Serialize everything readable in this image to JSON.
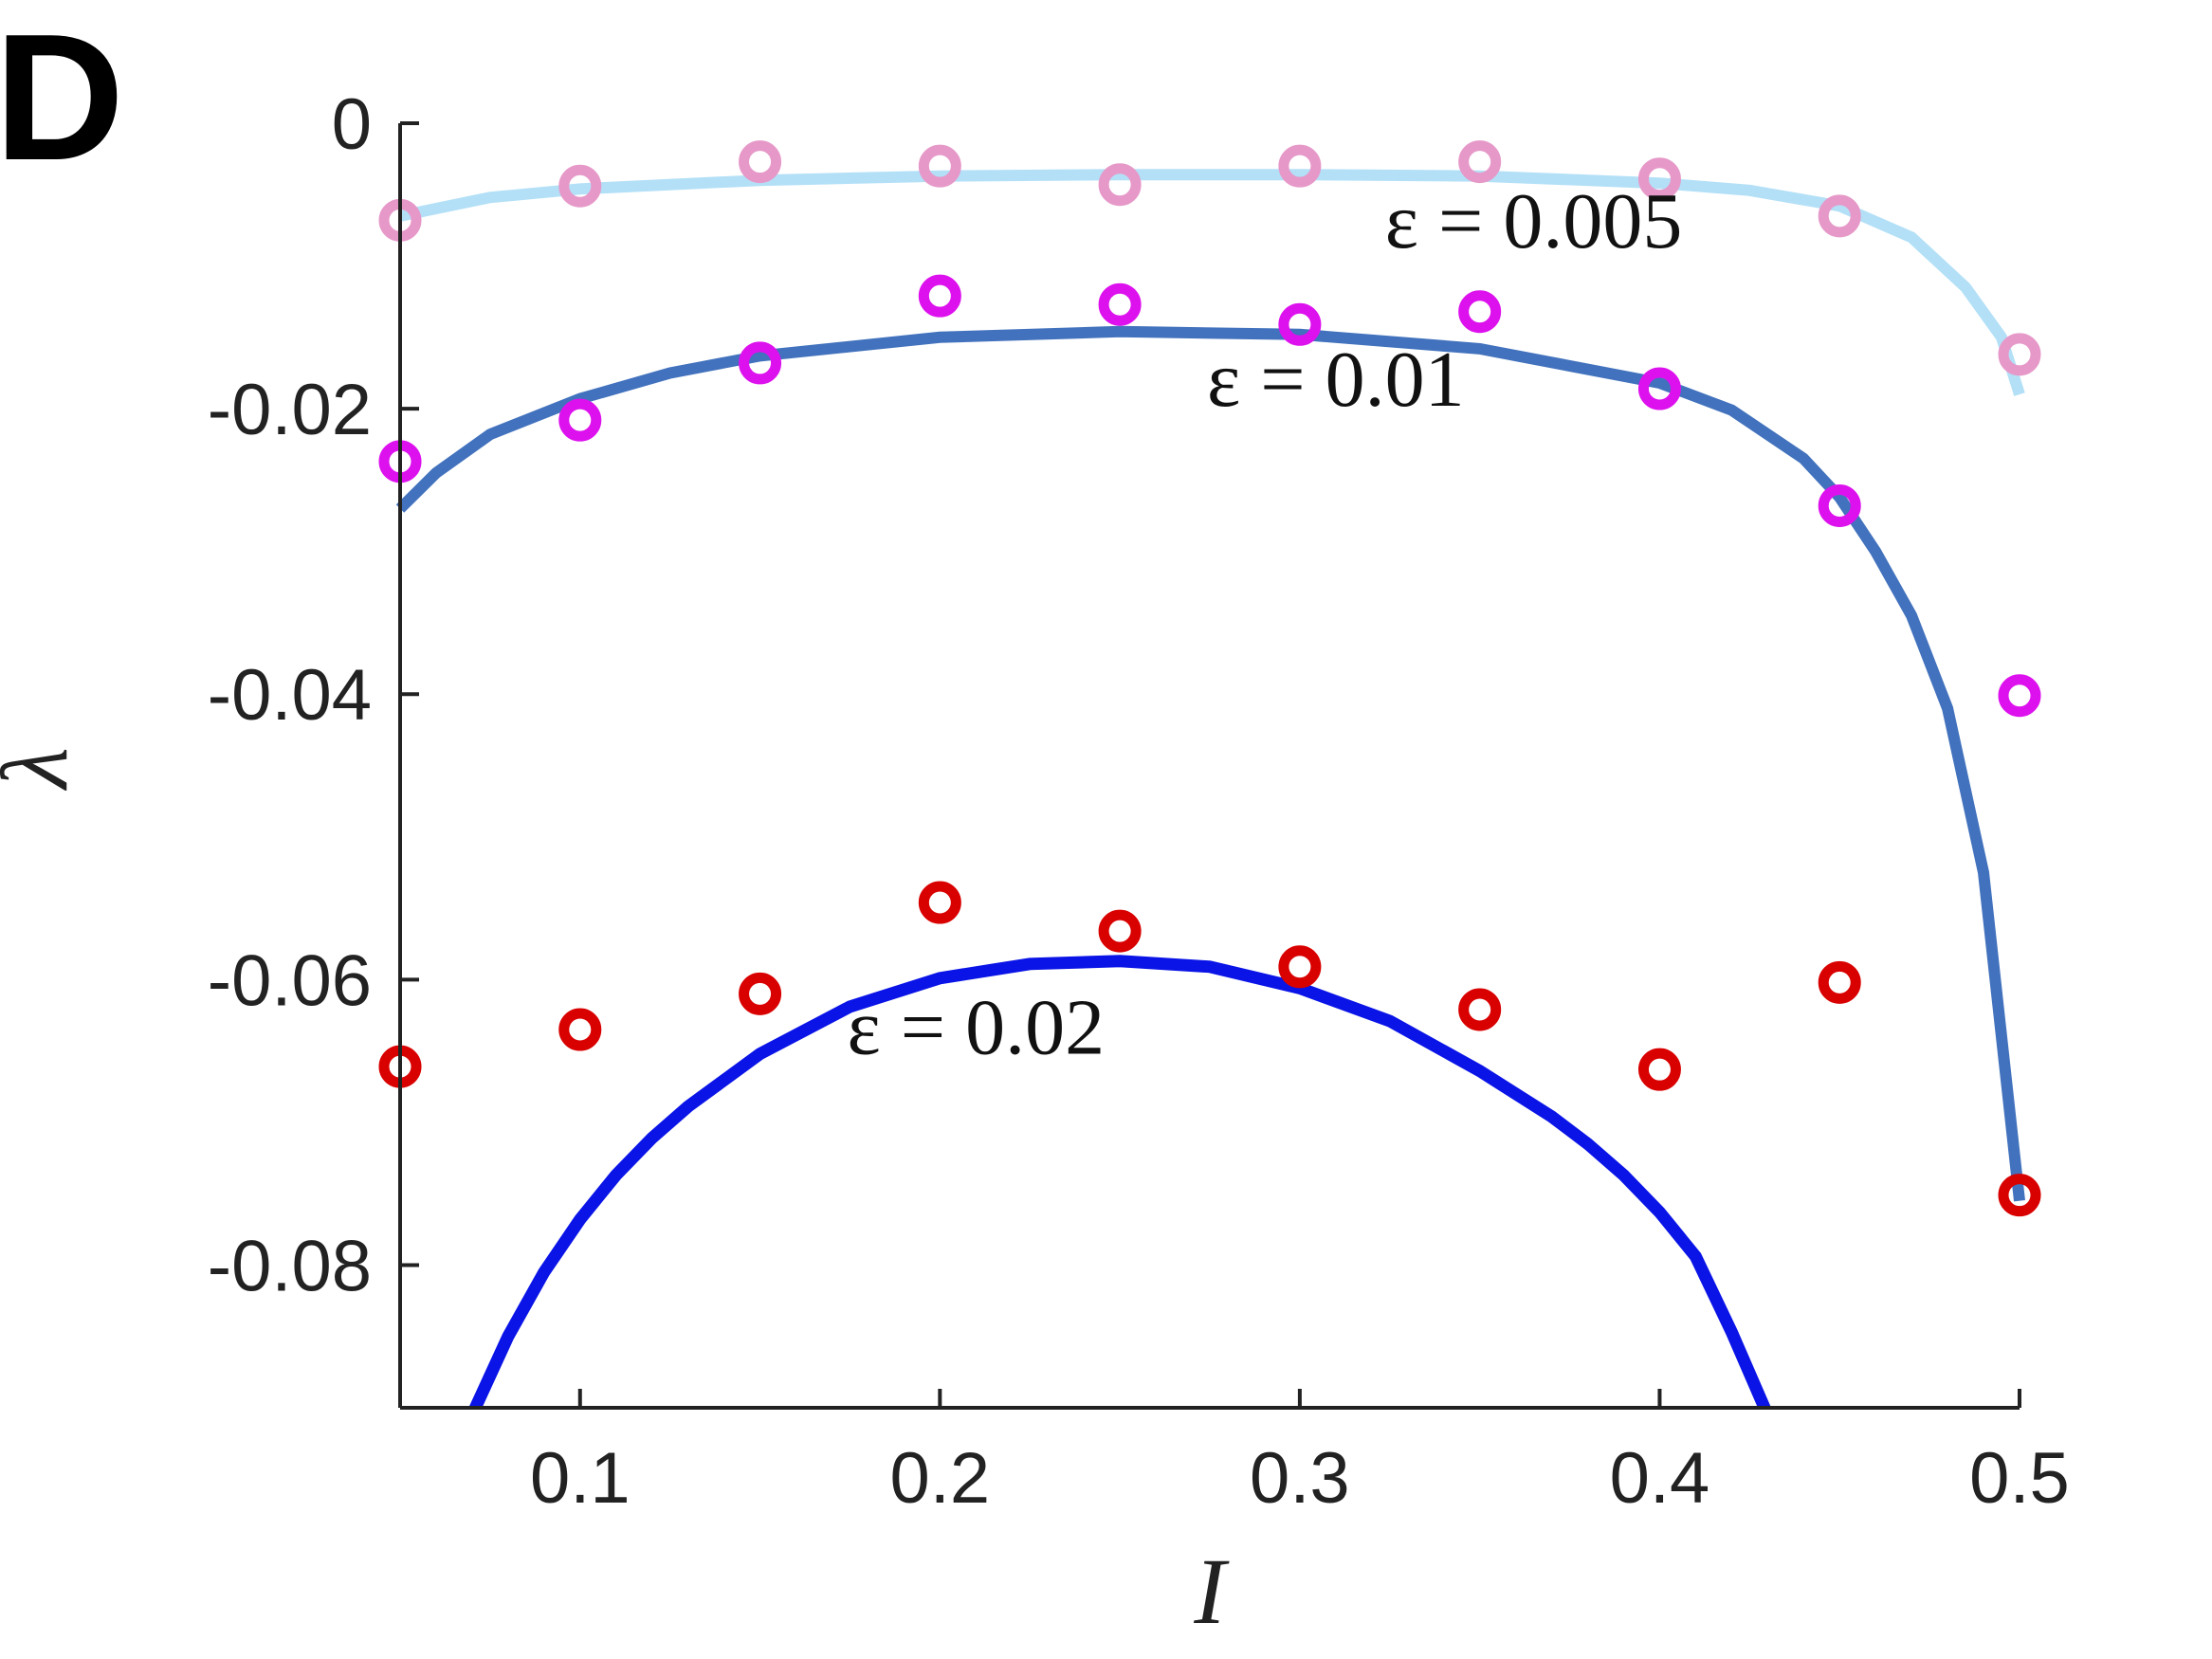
{
  "chart_data": {
    "type": "line",
    "panel_label": "D",
    "xlabel": "I",
    "ylabel": "λ",
    "xlim": [
      0.05,
      0.5
    ],
    "ylim": [
      -0.09,
      0
    ],
    "xticks": [
      "0.1",
      "0.2",
      "0.3",
      "0.4",
      "0.5"
    ],
    "xtick_values": [
      0.1,
      0.2,
      0.3,
      0.4,
      0.5
    ],
    "yticks": [
      "0",
      "-0.02",
      "-0.04",
      "-0.06",
      "-0.08"
    ],
    "ytick_values": [
      0,
      -0.02,
      -0.04,
      -0.06,
      -0.08
    ],
    "grid": false,
    "series": [
      {
        "kind": "line",
        "color": "#b3e0f7",
        "x": [
          0.05,
          0.075,
          0.1,
          0.15,
          0.2,
          0.25,
          0.3,
          0.35,
          0.4,
          0.425,
          0.45,
          0.47,
          0.485,
          0.495,
          0.5
        ],
        "y": [
          -0.0065,
          -0.0052,
          -0.0046,
          -0.004,
          -0.0037,
          -0.0036,
          -0.0036,
          -0.0037,
          -0.0042,
          -0.0047,
          -0.0058,
          -0.008,
          -0.0115,
          -0.015,
          -0.019
        ]
      },
      {
        "kind": "line",
        "color": "#4272bd",
        "x": [
          0.05,
          0.06,
          0.075,
          0.1,
          0.125,
          0.15,
          0.2,
          0.25,
          0.3,
          0.35,
          0.4,
          0.42,
          0.44,
          0.45,
          0.46,
          0.47,
          0.48,
          0.49,
          0.495,
          0.5
        ],
        "y": [
          -0.027,
          -0.0245,
          -0.0218,
          -0.0193,
          -0.0175,
          -0.0163,
          -0.015,
          -0.0146,
          -0.0148,
          -0.0158,
          -0.0182,
          -0.0201,
          -0.0235,
          -0.0262,
          -0.03,
          -0.0345,
          -0.041,
          -0.0525,
          -0.064,
          -0.0755
        ]
      },
      {
        "kind": "line",
        "color": "#0a14e6",
        "x": [
          0.07,
          0.08,
          0.09,
          0.1,
          0.11,
          0.12,
          0.13,
          0.15,
          0.175,
          0.2,
          0.225,
          0.25,
          0.275,
          0.3,
          0.325,
          0.35,
          0.37,
          0.38,
          0.39,
          0.4,
          0.41,
          0.42,
          0.43
        ],
        "y": [
          -0.0905,
          -0.085,
          -0.0805,
          -0.0768,
          -0.0737,
          -0.0711,
          -0.0689,
          -0.0652,
          -0.0619,
          -0.0599,
          -0.0589,
          -0.0587,
          -0.0591,
          -0.0606,
          -0.0629,
          -0.0664,
          -0.0696,
          -0.0715,
          -0.0737,
          -0.0763,
          -0.0794,
          -0.0847,
          -0.0905
        ]
      },
      {
        "kind": "markers",
        "color": "#e699c9",
        "x": [
          0.05,
          0.1,
          0.15,
          0.2,
          0.25,
          0.3,
          0.35,
          0.4,
          0.45,
          0.5
        ],
        "y": [
          -0.0068,
          -0.0044,
          -0.0027,
          -0.003,
          -0.0043,
          -0.003,
          -0.0027,
          -0.0039,
          -0.0065,
          -0.0162
        ]
      },
      {
        "kind": "markers",
        "color": "#dd11ee",
        "x": [
          0.05,
          0.1,
          0.15,
          0.2,
          0.25,
          0.3,
          0.35,
          0.4,
          0.45,
          0.5
        ],
        "y": [
          -0.0237,
          -0.0208,
          -0.0168,
          -0.0121,
          -0.0127,
          -0.0141,
          -0.0132,
          -0.0186,
          -0.0268,
          -0.0401
        ]
      },
      {
        "kind": "markers",
        "color": "#d90000",
        "x": [
          0.05,
          0.1,
          0.15,
          0.2,
          0.25,
          0.3,
          0.35,
          0.4,
          0.45,
          0.5
        ],
        "y": [
          -0.0661,
          -0.0635,
          -0.061,
          -0.0546,
          -0.0566,
          -0.0591,
          -0.0621,
          -0.0663,
          -0.0602,
          -0.0751
        ]
      }
    ],
    "annotations": [
      {
        "text": "ε = 0.005",
        "x": 0.365,
        "y": -0.0087
      },
      {
        "text": "ε = 0.01",
        "x": 0.31,
        "y": -0.0198
      },
      {
        "text": "ε = 0.02",
        "x": 0.21,
        "y": -0.0652
      }
    ]
  }
}
